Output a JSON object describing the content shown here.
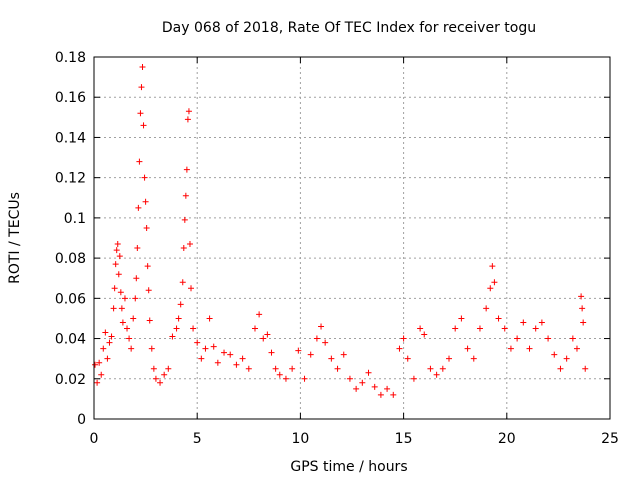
{
  "chart_data": {
    "type": "scatter",
    "title": "Day 068 of 2018, Rate Of TEC Index for receiver togu",
    "xlabel": "GPS time / hours",
    "ylabel": "ROTI / TECUs",
    "xlim": [
      0,
      25
    ],
    "ylim": [
      0,
      0.18
    ],
    "xticks": [
      0,
      5,
      10,
      15,
      20,
      25
    ],
    "xtick_labels": [
      "0",
      "5",
      "10",
      "15",
      "20",
      "25"
    ],
    "yticks": [
      0,
      0.02,
      0.04,
      0.06,
      0.08,
      0.1,
      0.12,
      0.14,
      0.16,
      0.18
    ],
    "ytick_labels": [
      "0",
      "0.02",
      "0.04",
      "0.06",
      "0.08",
      "0.1",
      "0.12",
      "0.14",
      "0.16",
      "0.18"
    ],
    "grid": true,
    "marker": "+",
    "marker_color": "#ff0000",
    "series": [
      {
        "name": "ROTI",
        "points": [
          [
            0.05,
            0.027
          ],
          [
            0.15,
            0.018
          ],
          [
            0.25,
            0.028
          ],
          [
            0.35,
            0.022
          ],
          [
            0.45,
            0.035
          ],
          [
            0.55,
            0.043
          ],
          [
            0.65,
            0.03
          ],
          [
            0.75,
            0.038
          ],
          [
            0.85,
            0.041
          ],
          [
            0.95,
            0.055
          ],
          [
            1.0,
            0.065
          ],
          [
            1.05,
            0.077
          ],
          [
            1.1,
            0.084
          ],
          [
            1.15,
            0.087
          ],
          [
            1.2,
            0.072
          ],
          [
            1.25,
            0.081
          ],
          [
            1.3,
            0.063
          ],
          [
            1.35,
            0.055
          ],
          [
            1.4,
            0.048
          ],
          [
            1.5,
            0.06
          ],
          [
            1.6,
            0.045
          ],
          [
            1.7,
            0.04
          ],
          [
            1.8,
            0.035
          ],
          [
            1.9,
            0.05
          ],
          [
            2.0,
            0.06
          ],
          [
            2.05,
            0.07
          ],
          [
            2.1,
            0.085
          ],
          [
            2.15,
            0.105
          ],
          [
            2.2,
            0.128
          ],
          [
            2.25,
            0.152
          ],
          [
            2.3,
            0.165
          ],
          [
            2.35,
            0.175
          ],
          [
            2.4,
            0.146
          ],
          [
            2.45,
            0.12
          ],
          [
            2.5,
            0.108
          ],
          [
            2.55,
            0.095
          ],
          [
            2.6,
            0.076
          ],
          [
            2.65,
            0.064
          ],
          [
            2.7,
            0.049
          ],
          [
            2.8,
            0.035
          ],
          [
            2.9,
            0.025
          ],
          [
            3.0,
            0.02
          ],
          [
            3.2,
            0.018
          ],
          [
            3.4,
            0.022
          ],
          [
            3.6,
            0.025
          ],
          [
            3.8,
            0.041
          ],
          [
            4.0,
            0.045
          ],
          [
            4.1,
            0.05
          ],
          [
            4.2,
            0.057
          ],
          [
            4.3,
            0.068
          ],
          [
            4.35,
            0.085
          ],
          [
            4.4,
            0.099
          ],
          [
            4.45,
            0.111
          ],
          [
            4.5,
            0.124
          ],
          [
            4.55,
            0.149
          ],
          [
            4.6,
            0.153
          ],
          [
            4.65,
            0.087
          ],
          [
            4.7,
            0.065
          ],
          [
            4.8,
            0.045
          ],
          [
            5.0,
            0.038
          ],
          [
            5.2,
            0.03
          ],
          [
            5.4,
            0.035
          ],
          [
            5.6,
            0.05
          ],
          [
            5.8,
            0.036
          ],
          [
            6.0,
            0.028
          ],
          [
            6.3,
            0.033
          ],
          [
            6.6,
            0.032
          ],
          [
            6.9,
            0.027
          ],
          [
            7.2,
            0.03
          ],
          [
            7.5,
            0.025
          ],
          [
            7.8,
            0.045
          ],
          [
            8.0,
            0.052
          ],
          [
            8.2,
            0.04
          ],
          [
            8.4,
            0.042
          ],
          [
            8.6,
            0.033
          ],
          [
            8.8,
            0.025
          ],
          [
            9.0,
            0.022
          ],
          [
            9.3,
            0.02
          ],
          [
            9.6,
            0.025
          ],
          [
            9.9,
            0.034
          ],
          [
            10.2,
            0.02
          ],
          [
            10.5,
            0.032
          ],
          [
            10.8,
            0.04
          ],
          [
            11.0,
            0.046
          ],
          [
            11.2,
            0.038
          ],
          [
            11.5,
            0.03
          ],
          [
            11.8,
            0.025
          ],
          [
            12.1,
            0.032
          ],
          [
            12.4,
            0.02
          ],
          [
            12.7,
            0.015
          ],
          [
            13.0,
            0.018
          ],
          [
            13.3,
            0.023
          ],
          [
            13.6,
            0.016
          ],
          [
            13.9,
            0.012
          ],
          [
            14.2,
            0.015
          ],
          [
            14.5,
            0.012
          ],
          [
            14.8,
            0.035
          ],
          [
            15.0,
            0.04
          ],
          [
            15.2,
            0.03
          ],
          [
            15.5,
            0.02
          ],
          [
            15.8,
            0.045
          ],
          [
            16.0,
            0.042
          ],
          [
            16.3,
            0.025
          ],
          [
            16.6,
            0.022
          ],
          [
            16.9,
            0.025
          ],
          [
            17.2,
            0.03
          ],
          [
            17.5,
            0.045
          ],
          [
            17.8,
            0.05
          ],
          [
            18.1,
            0.035
          ],
          [
            18.4,
            0.03
          ],
          [
            18.7,
            0.045
          ],
          [
            19.0,
            0.055
          ],
          [
            19.2,
            0.065
          ],
          [
            19.3,
            0.076
          ],
          [
            19.4,
            0.068
          ],
          [
            19.6,
            0.05
          ],
          [
            19.9,
            0.045
          ],
          [
            20.2,
            0.035
          ],
          [
            20.5,
            0.04
          ],
          [
            20.8,
            0.048
          ],
          [
            21.1,
            0.035
          ],
          [
            21.4,
            0.045
          ],
          [
            21.7,
            0.048
          ],
          [
            22.0,
            0.04
          ],
          [
            22.3,
            0.032
          ],
          [
            22.6,
            0.025
          ],
          [
            22.9,
            0.03
          ],
          [
            23.2,
            0.04
          ],
          [
            23.4,
            0.035
          ],
          [
            23.6,
            0.061
          ],
          [
            23.65,
            0.055
          ],
          [
            23.7,
            0.048
          ],
          [
            23.8,
            0.025
          ]
        ]
      }
    ]
  }
}
